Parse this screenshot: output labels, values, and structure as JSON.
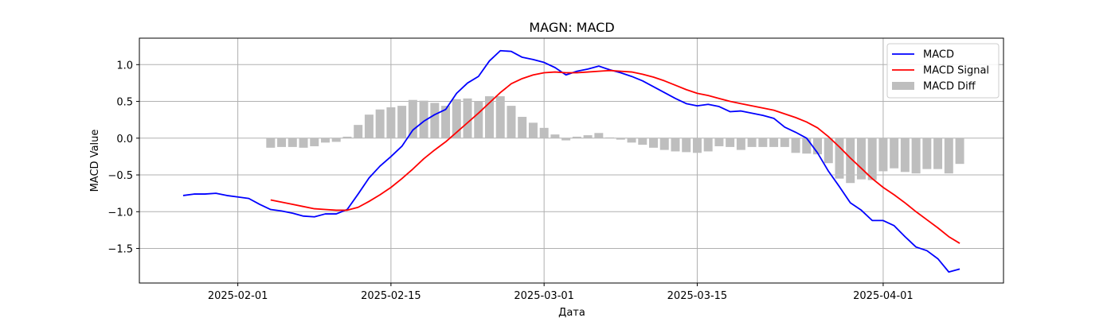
{
  "chart_data": {
    "type": "line",
    "title": "MAGN: MACD",
    "xlabel": "Дата",
    "ylabel": "MACD Value",
    "x_tick_labels": [
      "2025-02-01",
      "2025-02-15",
      "2025-03-01",
      "2025-03-15",
      "2025-04-01"
    ],
    "x_ticks": [
      "2025-02-01",
      "2025-02-15",
      "2025-03-01",
      "2025-03-15",
      "2025-04-01"
    ],
    "x_range": [
      "2025-01-23",
      "2025-04-12"
    ],
    "y_ticks": [
      -1.5,
      -1.0,
      -0.5,
      0.0,
      0.5,
      1.0
    ],
    "y_tick_labels": [
      "−1.5",
      "−1.0",
      "−0.5",
      "0.0",
      "0.5",
      "1.0"
    ],
    "ylim": [
      -1.97,
      1.36
    ],
    "grid": true,
    "legend_position": "top-right",
    "series": [
      {
        "name": "MACD",
        "kind": "line",
        "color": "#0000ff",
        "points": [
          [
            "2025-01-27",
            -0.78
          ],
          [
            "2025-01-28",
            -0.76
          ],
          [
            "2025-01-29",
            -0.76
          ],
          [
            "2025-01-30",
            -0.75
          ],
          [
            "2025-01-31",
            -0.78
          ],
          [
            "2025-02-01",
            -0.8
          ],
          [
            "2025-02-02",
            -0.82
          ],
          [
            "2025-02-03",
            -0.9
          ],
          [
            "2025-02-04",
            -0.97
          ],
          [
            "2025-02-05",
            -0.99
          ],
          [
            "2025-02-06",
            -1.02
          ],
          [
            "2025-02-07",
            -1.06
          ],
          [
            "2025-02-08",
            -1.07
          ],
          [
            "2025-02-09",
            -1.03
          ],
          [
            "2025-02-10",
            -1.03
          ],
          [
            "2025-02-11",
            -0.97
          ],
          [
            "2025-02-12",
            -0.76
          ],
          [
            "2025-02-13",
            -0.54
          ],
          [
            "2025-02-14",
            -0.38
          ],
          [
            "2025-02-15",
            -0.25
          ],
          [
            "2025-02-16",
            -0.11
          ],
          [
            "2025-02-17",
            0.11
          ],
          [
            "2025-02-18",
            0.23
          ],
          [
            "2025-02-19",
            0.32
          ],
          [
            "2025-02-20",
            0.39
          ],
          [
            "2025-02-21",
            0.61
          ],
          [
            "2025-02-22",
            0.75
          ],
          [
            "2025-02-23",
            0.84
          ],
          [
            "2025-02-24",
            1.05
          ],
          [
            "2025-02-25",
            1.19
          ],
          [
            "2025-02-26",
            1.18
          ],
          [
            "2025-02-27",
            1.1
          ],
          [
            "2025-02-28",
            1.07
          ],
          [
            "2025-03-01",
            1.03
          ],
          [
            "2025-03-02",
            0.96
          ],
          [
            "2025-03-03",
            0.86
          ],
          [
            "2025-03-04",
            0.91
          ],
          [
            "2025-03-05",
            0.94
          ],
          [
            "2025-03-06",
            0.98
          ],
          [
            "2025-03-07",
            0.93
          ],
          [
            "2025-03-08",
            0.89
          ],
          [
            "2025-03-09",
            0.84
          ],
          [
            "2025-03-10",
            0.78
          ],
          [
            "2025-03-11",
            0.7
          ],
          [
            "2025-03-12",
            0.62
          ],
          [
            "2025-03-13",
            0.54
          ],
          [
            "2025-03-14",
            0.47
          ],
          [
            "2025-03-15",
            0.44
          ],
          [
            "2025-03-16",
            0.46
          ],
          [
            "2025-03-17",
            0.43
          ],
          [
            "2025-03-18",
            0.36
          ],
          [
            "2025-03-19",
            0.37
          ],
          [
            "2025-03-20",
            0.34
          ],
          [
            "2025-03-21",
            0.31
          ],
          [
            "2025-03-22",
            0.27
          ],
          [
            "2025-03-23",
            0.15
          ],
          [
            "2025-03-24",
            0.08
          ],
          [
            "2025-03-25",
            0.0
          ],
          [
            "2025-03-26",
            -0.2
          ],
          [
            "2025-03-27",
            -0.45
          ],
          [
            "2025-03-28",
            -0.66
          ],
          [
            "2025-03-29",
            -0.88
          ],
          [
            "2025-03-30",
            -0.98
          ],
          [
            "2025-03-31",
            -1.12
          ],
          [
            "2025-04-01",
            -1.12
          ],
          [
            "2025-04-02",
            -1.19
          ],
          [
            "2025-04-03",
            -1.34
          ],
          [
            "2025-04-04",
            -1.48
          ],
          [
            "2025-04-05",
            -1.53
          ],
          [
            "2025-04-06",
            -1.64
          ],
          [
            "2025-04-07",
            -1.82
          ],
          [
            "2025-04-08",
            -1.78
          ]
        ]
      },
      {
        "name": "MACD Signal",
        "kind": "line",
        "color": "#ff0000",
        "points": [
          [
            "2025-02-04",
            -0.84
          ],
          [
            "2025-02-05",
            -0.87
          ],
          [
            "2025-02-06",
            -0.9
          ],
          [
            "2025-02-07",
            -0.93
          ],
          [
            "2025-02-08",
            -0.96
          ],
          [
            "2025-02-09",
            -0.97
          ],
          [
            "2025-02-10",
            -0.98
          ],
          [
            "2025-02-11",
            -0.98
          ],
          [
            "2025-02-12",
            -0.94
          ],
          [
            "2025-02-13",
            -0.86
          ],
          [
            "2025-02-14",
            -0.77
          ],
          [
            "2025-02-15",
            -0.67
          ],
          [
            "2025-02-16",
            -0.55
          ],
          [
            "2025-02-17",
            -0.42
          ],
          [
            "2025-02-18",
            -0.28
          ],
          [
            "2025-02-19",
            -0.16
          ],
          [
            "2025-02-20",
            -0.05
          ],
          [
            "2025-02-21",
            0.08
          ],
          [
            "2025-02-22",
            0.21
          ],
          [
            "2025-02-23",
            0.34
          ],
          [
            "2025-02-24",
            0.48
          ],
          [
            "2025-02-25",
            0.62
          ],
          [
            "2025-02-26",
            0.74
          ],
          [
            "2025-02-27",
            0.81
          ],
          [
            "2025-02-28",
            0.86
          ],
          [
            "2025-03-01",
            0.89
          ],
          [
            "2025-03-02",
            0.9
          ],
          [
            "2025-03-03",
            0.89
          ],
          [
            "2025-03-04",
            0.89
          ],
          [
            "2025-03-05",
            0.9
          ],
          [
            "2025-03-06",
            0.91
          ],
          [
            "2025-03-07",
            0.92
          ],
          [
            "2025-03-08",
            0.91
          ],
          [
            "2025-03-09",
            0.9
          ],
          [
            "2025-03-10",
            0.87
          ],
          [
            "2025-03-11",
            0.83
          ],
          [
            "2025-03-12",
            0.78
          ],
          [
            "2025-03-13",
            0.72
          ],
          [
            "2025-03-14",
            0.66
          ],
          [
            "2025-03-15",
            0.61
          ],
          [
            "2025-03-16",
            0.58
          ],
          [
            "2025-03-17",
            0.54
          ],
          [
            "2025-03-18",
            0.5
          ],
          [
            "2025-03-19",
            0.47
          ],
          [
            "2025-03-20",
            0.44
          ],
          [
            "2025-03-21",
            0.41
          ],
          [
            "2025-03-22",
            0.38
          ],
          [
            "2025-03-23",
            0.33
          ],
          [
            "2025-03-24",
            0.28
          ],
          [
            "2025-03-25",
            0.22
          ],
          [
            "2025-03-26",
            0.14
          ],
          [
            "2025-03-27",
            0.02
          ],
          [
            "2025-03-28",
            -0.12
          ],
          [
            "2025-03-29",
            -0.27
          ],
          [
            "2025-03-30",
            -0.41
          ],
          [
            "2025-03-31",
            -0.55
          ],
          [
            "2025-04-01",
            -0.67
          ],
          [
            "2025-04-02",
            -0.77
          ],
          [
            "2025-04-03",
            -0.88
          ],
          [
            "2025-04-04",
            -1.0
          ],
          [
            "2025-04-05",
            -1.11
          ],
          [
            "2025-04-06",
            -1.22
          ],
          [
            "2025-04-07",
            -1.34
          ],
          [
            "2025-04-08",
            -1.43
          ]
        ]
      },
      {
        "name": "MACD Diff",
        "kind": "bar",
        "color": "#bebebe",
        "points": [
          [
            "2025-02-04",
            -0.13
          ],
          [
            "2025-02-05",
            -0.12
          ],
          [
            "2025-02-06",
            -0.12
          ],
          [
            "2025-02-07",
            -0.13
          ],
          [
            "2025-02-08",
            -0.11
          ],
          [
            "2025-02-09",
            -0.06
          ],
          [
            "2025-02-10",
            -0.05
          ],
          [
            "2025-02-11",
            0.02
          ],
          [
            "2025-02-12",
            0.18
          ],
          [
            "2025-02-13",
            0.32
          ],
          [
            "2025-02-14",
            0.39
          ],
          [
            "2025-02-15",
            0.42
          ],
          [
            "2025-02-16",
            0.44
          ],
          [
            "2025-02-17",
            0.52
          ],
          [
            "2025-02-18",
            0.51
          ],
          [
            "2025-02-19",
            0.48
          ],
          [
            "2025-02-20",
            0.44
          ],
          [
            "2025-02-21",
            0.53
          ],
          [
            "2025-02-22",
            0.54
          ],
          [
            "2025-02-23",
            0.5
          ],
          [
            "2025-02-24",
            0.57
          ],
          [
            "2025-02-25",
            0.57
          ],
          [
            "2025-02-26",
            0.44
          ],
          [
            "2025-02-27",
            0.29
          ],
          [
            "2025-02-28",
            0.21
          ],
          [
            "2025-03-01",
            0.14
          ],
          [
            "2025-03-02",
            0.05
          ],
          [
            "2025-03-03",
            -0.03
          ],
          [
            "2025-03-04",
            0.02
          ],
          [
            "2025-03-05",
            0.04
          ],
          [
            "2025-03-06",
            0.07
          ],
          [
            "2025-03-07",
            0.01
          ],
          [
            "2025-03-08",
            -0.02
          ],
          [
            "2025-03-09",
            -0.06
          ],
          [
            "2025-03-10",
            -0.09
          ],
          [
            "2025-03-11",
            -0.13
          ],
          [
            "2025-03-12",
            -0.16
          ],
          [
            "2025-03-13",
            -0.18
          ],
          [
            "2025-03-14",
            -0.19
          ],
          [
            "2025-03-15",
            -0.2
          ],
          [
            "2025-03-16",
            -0.18
          ],
          [
            "2025-03-17",
            -0.11
          ],
          [
            "2025-03-18",
            -0.12
          ],
          [
            "2025-03-19",
            -0.16
          ],
          [
            "2025-03-20",
            -0.12
          ],
          [
            "2025-03-21",
            -0.12
          ],
          [
            "2025-03-22",
            -0.12
          ],
          [
            "2025-03-23",
            -0.12
          ],
          [
            "2025-03-24",
            -0.2
          ],
          [
            "2025-03-25",
            -0.21
          ],
          [
            "2025-03-26",
            -0.22
          ],
          [
            "2025-03-27",
            -0.34
          ],
          [
            "2025-03-28",
            -0.55
          ],
          [
            "2025-03-29",
            -0.61
          ],
          [
            "2025-03-30",
            -0.56
          ],
          [
            "2025-03-31",
            -0.57
          ],
          [
            "2025-04-01",
            -0.45
          ],
          [
            "2025-04-02",
            -0.41
          ],
          [
            "2025-04-03",
            -0.46
          ],
          [
            "2025-04-04",
            -0.48
          ],
          [
            "2025-04-05",
            -0.42
          ],
          [
            "2025-04-06",
            -0.42
          ],
          [
            "2025-04-07",
            -0.48
          ],
          [
            "2025-04-08",
            -0.35
          ]
        ]
      }
    ]
  }
}
